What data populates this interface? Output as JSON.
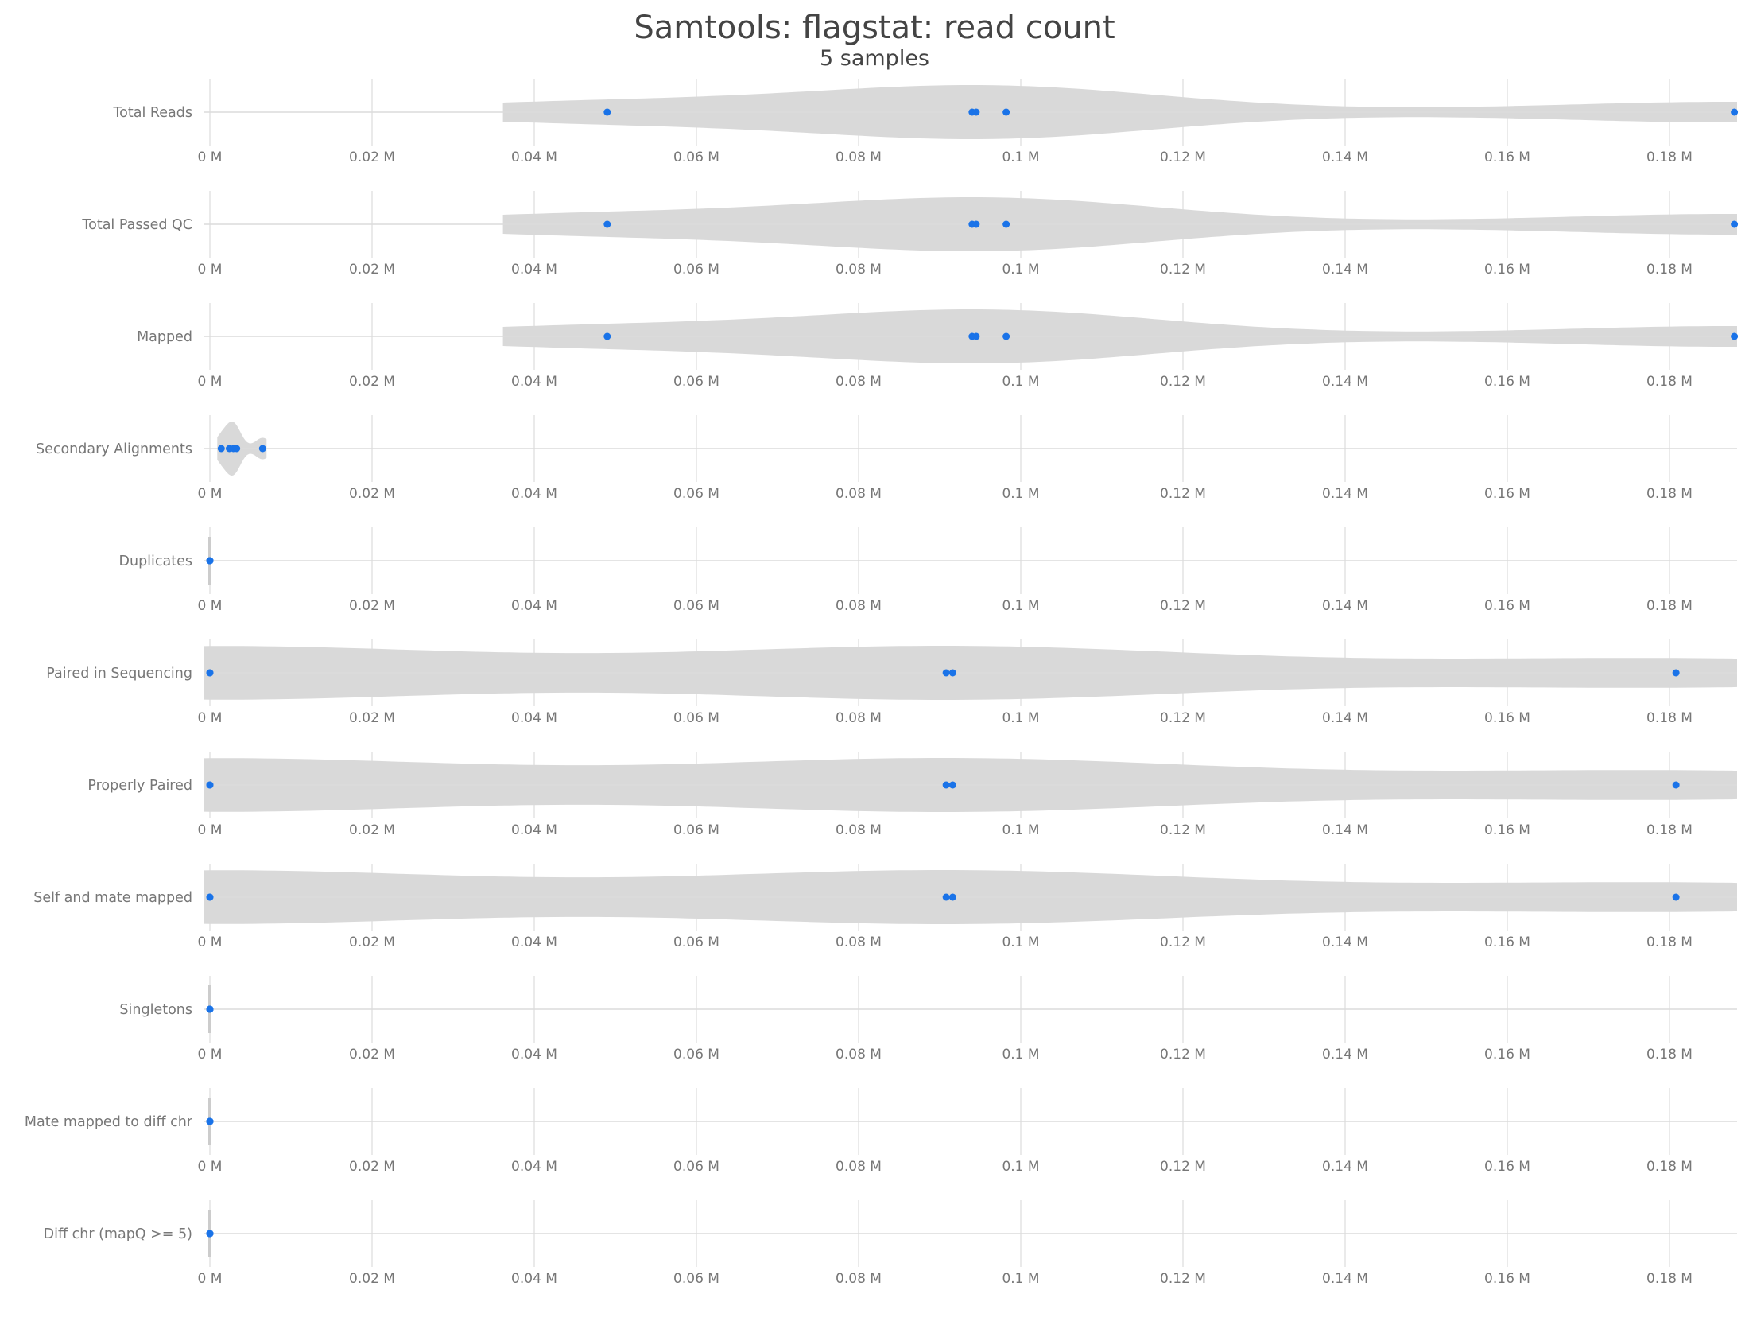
{
  "title": "Samtools: flagstat: read count",
  "subtitle": "5 samples",
  "chart_data": {
    "type": "violin",
    "title": "Samtools: flagstat: read count",
    "subtitle": "5 samples",
    "xlim": [
      0,
      0.1883
    ],
    "x_unit": "M",
    "grid": true,
    "x_ticks": [
      "0 M",
      "0.02 M",
      "0.04 M",
      "0.06 M",
      "0.08 M",
      "0.1 M",
      "0.12 M",
      "0.14 M",
      "0.16 M",
      "0.18 M"
    ],
    "x_tick_values": [
      0,
      0.02,
      0.04,
      0.06,
      0.08,
      0.1,
      0.12,
      0.14,
      0.16,
      0.18
    ],
    "colors": {
      "point": "#1a73e8",
      "violin": "#d9d9d9",
      "grid": "#e2e2e2",
      "text": "#777777",
      "title": "#444444"
    },
    "rows": [
      {
        "label": "Total Reads",
        "values": [
          0.049,
          0.094,
          0.0945,
          0.0982,
          0.188
        ]
      },
      {
        "label": "Total Passed QC",
        "values": [
          0.049,
          0.094,
          0.0945,
          0.0982,
          0.188
        ]
      },
      {
        "label": "Mapped",
        "values": [
          0.049,
          0.094,
          0.0945,
          0.0982,
          0.188
        ]
      },
      {
        "label": "Secondary Alignments",
        "values": [
          0.0014,
          0.0024,
          0.0029,
          0.0033,
          0.0065
        ]
      },
      {
        "label": "Duplicates",
        "values": [
          0,
          0,
          0,
          0,
          0
        ]
      },
      {
        "label": "Paired in Sequencing",
        "values": [
          0,
          0,
          0.0908,
          0.0916,
          0.1808
        ]
      },
      {
        "label": "Properly Paired",
        "values": [
          0,
          0,
          0.0908,
          0.0916,
          0.1808
        ]
      },
      {
        "label": "Self and mate mapped",
        "values": [
          0,
          0,
          0.0908,
          0.0916,
          0.1808
        ]
      },
      {
        "label": "Singletons",
        "values": [
          0,
          0,
          0,
          0,
          0
        ]
      },
      {
        "label": "Mate mapped to diff chr",
        "values": [
          0,
          0,
          0,
          0,
          0
        ]
      },
      {
        "label": "Diff chr (mapQ >= 5)",
        "values": [
          0,
          0,
          0,
          0,
          0
        ]
      }
    ]
  }
}
